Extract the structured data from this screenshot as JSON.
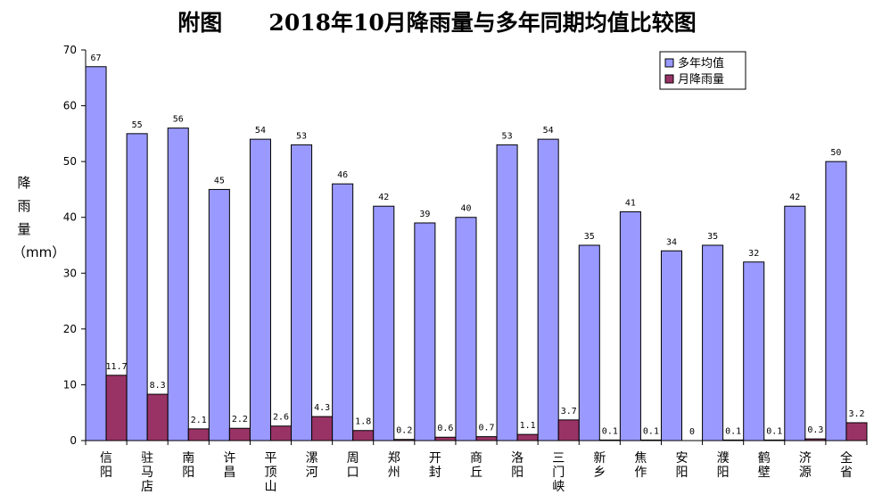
{
  "title": "附图      2018年10月降雨量与多年同期均值比较图",
  "chart_data": {
    "type": "bar",
    "title": "附图      2018年10月降雨量与多年同期均值比较图",
    "ylabel": "降雨量（mm）",
    "ylim": [
      0,
      70
    ],
    "yticks": [
      0,
      10,
      20,
      30,
      40,
      50,
      60,
      70
    ],
    "grid": false,
    "legend_position": "top-right",
    "categories": [
      "信阳",
      "驻马店",
      "南阳",
      "许昌",
      "平顶山",
      "漯河",
      "周口",
      "郑州",
      "开封",
      "商丘",
      "洛阳",
      "三门峡",
      "新乡",
      "焦作",
      "安阳",
      "濮阳",
      "鹤壁",
      "济源",
      "全省"
    ],
    "series": [
      {
        "name": "多年均值",
        "color": "#9999ff",
        "values": [
          67,
          55,
          56,
          45,
          54,
          53,
          46,
          42,
          39,
          40,
          53,
          54,
          35,
          41,
          34,
          35,
          32,
          42,
          50
        ],
        "labels": [
          "67",
          "55",
          "56",
          "45",
          "54",
          "53",
          "46",
          "42",
          "39",
          "40",
          "53",
          "54",
          "35",
          "41",
          "34",
          "35",
          "32",
          "42",
          "50"
        ]
      },
      {
        "name": "月降雨量",
        "color": "#993366",
        "values": [
          11.7,
          8.3,
          2.1,
          2.2,
          2.6,
          4.3,
          1.8,
          0.2,
          0.6,
          0.7,
          1.1,
          3.7,
          0.1,
          0.1,
          0,
          0.1,
          0.1,
          0.3,
          3.2
        ],
        "labels": [
          "11.7",
          "8.3",
          "2.1",
          "2.2",
          "2.6",
          "4.3",
          "1.8",
          "0.2",
          "0.6",
          "0.7",
          "1.1",
          "3.7",
          "0.1",
          "0.1",
          "0",
          "0.1",
          "0.1",
          "0.3",
          "3.2"
        ]
      }
    ]
  }
}
